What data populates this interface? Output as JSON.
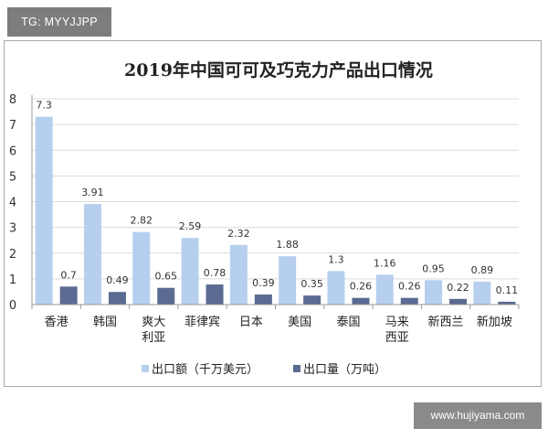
{
  "overlay": {
    "tag": "TG: MYYJJPP",
    "watermark": "www.hujiyama.com"
  },
  "colors": {
    "series1": "#b7cfee",
    "series2": "#5b6a92",
    "axis": "#9a9a9a",
    "grid": "#dcdcdc"
  },
  "chart_data": {
    "type": "bar",
    "title": "2019年中国可可及巧克力产品出口情况",
    "xlabel": "",
    "ylabel": "",
    "ylim": [
      0,
      8
    ],
    "yticks": [
      "0",
      "1",
      "2",
      "3",
      "4",
      "5",
      "6",
      "7",
      "8"
    ],
    "grid": true,
    "legend_position": "bottom",
    "categories": [
      [
        "香港"
      ],
      [
        "韩国"
      ],
      [
        "爽大",
        "利亚"
      ],
      [
        "菲律宾"
      ],
      [
        "日本"
      ],
      [
        "美国"
      ],
      [
        "泰国"
      ],
      [
        "马来",
        "西亚"
      ],
      [
        "新西兰"
      ],
      [
        "新加坡"
      ]
    ],
    "series": [
      {
        "name": "出口额（千万美元）",
        "values": [
          7.3,
          3.91,
          2.82,
          2.59,
          2.32,
          1.88,
          1.3,
          1.16,
          0.95,
          0.89
        ],
        "labels": [
          "7.3",
          "3.91",
          "2.82",
          "2.59",
          "2.32",
          "1.88",
          "1.3",
          "1.16",
          "0.95",
          "0.89"
        ]
      },
      {
        "name": "出口量（万吨）",
        "values": [
          0.7,
          0.49,
          0.65,
          0.78,
          0.39,
          0.35,
          0.26,
          0.26,
          0.22,
          0.11
        ],
        "labels": [
          "0.7",
          "0.49",
          "0.65",
          "0.78",
          "0.39",
          "0.35",
          "0.26",
          "0.26",
          "0.22",
          "0.11"
        ]
      }
    ]
  }
}
